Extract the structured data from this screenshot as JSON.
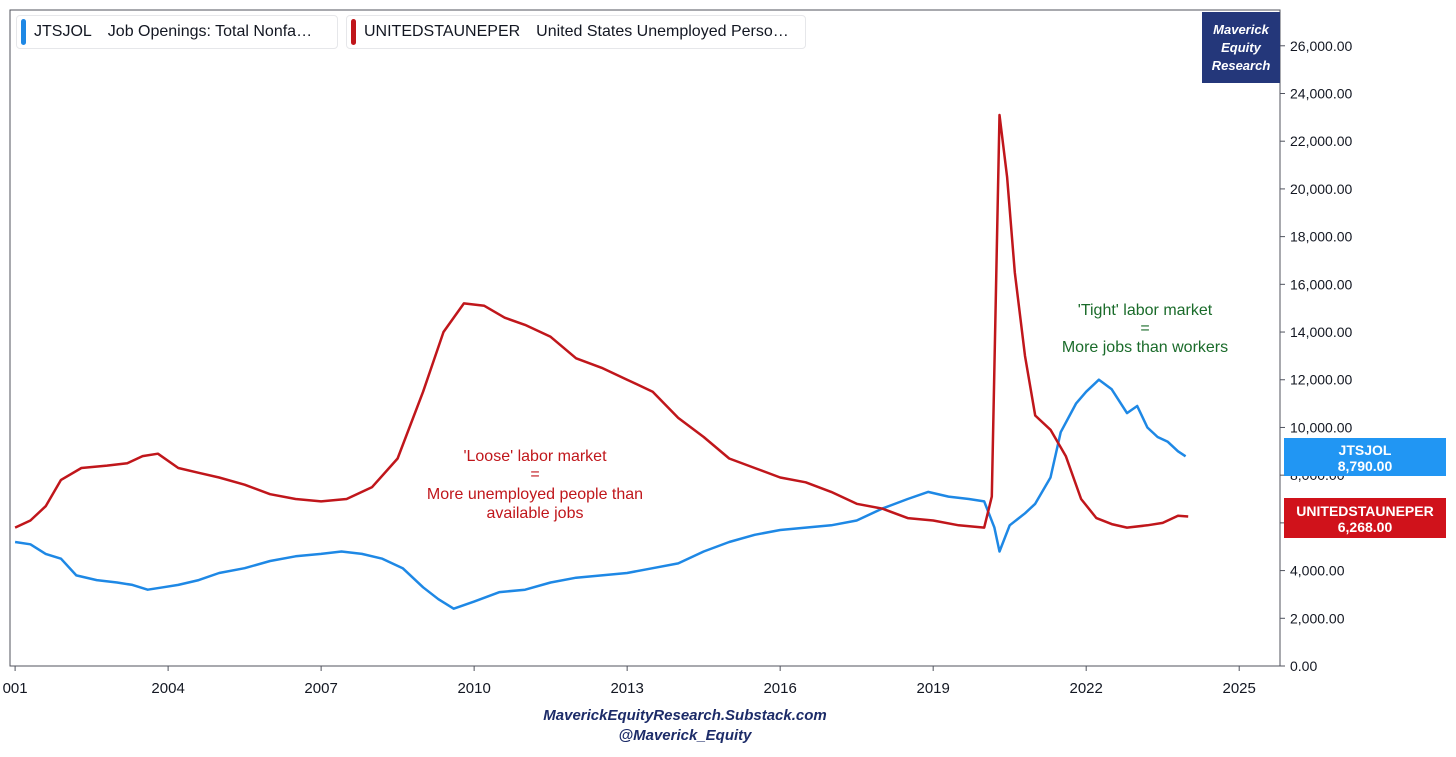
{
  "legend": [
    {
      "symbol": "JTSJOL",
      "description": "Job Openings: Total Nonfa…",
      "color": "#1e88e5"
    },
    {
      "symbol": "UNITEDSTAUNEPER",
      "description": "United States Unemployed Perso…",
      "color": "#c0161b"
    }
  ],
  "brand": {
    "line1": "Maverick",
    "line2": "Equity",
    "line3": "Research",
    "color": "#24377a"
  },
  "footer": {
    "site": "MaverickEquityResearch.Substack.com",
    "handle": "@Maverick_Equity"
  },
  "annotations": {
    "loose": {
      "line1": "'Loose' labor market",
      "line2": "=",
      "line3": "More unemployed people than",
      "line4": "available jobs",
      "color": "#c0161b"
    },
    "tight": {
      "line1": "'Tight' labor market",
      "line2": "=",
      "line3": "More jobs than workers",
      "color": "#1a6b2a"
    }
  },
  "price_tags": [
    {
      "symbol": "JTSJOL",
      "value": "8,790.00",
      "color": "#2196f3"
    },
    {
      "symbol": "UNITEDSTAUNEPER",
      "value": "6,268.00",
      "color": "#d0121b"
    }
  ],
  "chart_data": {
    "type": "line",
    "x_ticks": [
      "001",
      "2004",
      "2007",
      "2010",
      "2013",
      "2016",
      "2019",
      "2022",
      "2025"
    ],
    "x_tick_years": [
      2001,
      2004,
      2007,
      2010,
      2013,
      2016,
      2019,
      2022,
      2025
    ],
    "xlim": [
      2000.9,
      2025.8
    ],
    "ylim": [
      0,
      27500
    ],
    "y_ticks": [
      "0.00",
      "2,000.00",
      "4,000.00",
      "6,000.00",
      "8,000.00",
      "10,000.00",
      "12,000.00",
      "14,000.00",
      "16,000.00",
      "18,000.00",
      "20,000.00",
      "22,000.00",
      "24,000.00",
      "26,000.00"
    ],
    "y_tick_values": [
      0,
      2000,
      4000,
      6000,
      8000,
      10000,
      12000,
      14000,
      16000,
      18000,
      20000,
      22000,
      24000,
      26000
    ],
    "y_axis_position": "right",
    "series": [
      {
        "name": "JTSJOL",
        "color": "#1e88e5",
        "points": [
          [
            2001.0,
            5200
          ],
          [
            2001.3,
            5100
          ],
          [
            2001.6,
            4700
          ],
          [
            2001.9,
            4500
          ],
          [
            2002.2,
            3800
          ],
          [
            2002.6,
            3600
          ],
          [
            2003.0,
            3500
          ],
          [
            2003.3,
            3400
          ],
          [
            2003.6,
            3200
          ],
          [
            2003.9,
            3300
          ],
          [
            2004.2,
            3400
          ],
          [
            2004.6,
            3600
          ],
          [
            2005.0,
            3900
          ],
          [
            2005.5,
            4100
          ],
          [
            2006.0,
            4400
          ],
          [
            2006.5,
            4600
          ],
          [
            2007.0,
            4700
          ],
          [
            2007.4,
            4800
          ],
          [
            2007.8,
            4700
          ],
          [
            2008.2,
            4500
          ],
          [
            2008.6,
            4100
          ],
          [
            2009.0,
            3300
          ],
          [
            2009.3,
            2800
          ],
          [
            2009.6,
            2400
          ],
          [
            2010.0,
            2700
          ],
          [
            2010.5,
            3100
          ],
          [
            2011.0,
            3200
          ],
          [
            2011.5,
            3500
          ],
          [
            2012.0,
            3700
          ],
          [
            2012.5,
            3800
          ],
          [
            2013.0,
            3900
          ],
          [
            2013.5,
            4100
          ],
          [
            2014.0,
            4300
          ],
          [
            2014.5,
            4800
          ],
          [
            2015.0,
            5200
          ],
          [
            2015.5,
            5500
          ],
          [
            2016.0,
            5700
          ],
          [
            2016.5,
            5800
          ],
          [
            2017.0,
            5900
          ],
          [
            2017.5,
            6100
          ],
          [
            2018.0,
            6600
          ],
          [
            2018.5,
            7000
          ],
          [
            2018.9,
            7300
          ],
          [
            2019.3,
            7100
          ],
          [
            2019.7,
            7000
          ],
          [
            2020.0,
            6900
          ],
          [
            2020.2,
            5800
          ],
          [
            2020.3,
            4800
          ],
          [
            2020.5,
            5900
          ],
          [
            2020.8,
            6400
          ],
          [
            2021.0,
            6800
          ],
          [
            2021.3,
            7900
          ],
          [
            2021.5,
            9800
          ],
          [
            2021.8,
            11000
          ],
          [
            2022.0,
            11500
          ],
          [
            2022.25,
            12000
          ],
          [
            2022.5,
            11600
          ],
          [
            2022.8,
            10600
          ],
          [
            2023.0,
            10900
          ],
          [
            2023.2,
            10000
          ],
          [
            2023.4,
            9600
          ],
          [
            2023.6,
            9400
          ],
          [
            2023.8,
            9000
          ],
          [
            2023.95,
            8790
          ]
        ]
      },
      {
        "name": "UNITEDSTAUNEPER",
        "color": "#c0161b",
        "points": [
          [
            2001.0,
            5800
          ],
          [
            2001.3,
            6100
          ],
          [
            2001.6,
            6700
          ],
          [
            2001.9,
            7800
          ],
          [
            2002.3,
            8300
          ],
          [
            2002.8,
            8400
          ],
          [
            2003.2,
            8500
          ],
          [
            2003.5,
            8800
          ],
          [
            2003.8,
            8900
          ],
          [
            2004.2,
            8300
          ],
          [
            2004.6,
            8100
          ],
          [
            2005.0,
            7900
          ],
          [
            2005.5,
            7600
          ],
          [
            2006.0,
            7200
          ],
          [
            2006.5,
            7000
          ],
          [
            2007.0,
            6900
          ],
          [
            2007.5,
            7000
          ],
          [
            2008.0,
            7500
          ],
          [
            2008.5,
            8700
          ],
          [
            2009.0,
            11500
          ],
          [
            2009.4,
            14000
          ],
          [
            2009.8,
            15200
          ],
          [
            2010.2,
            15100
          ],
          [
            2010.6,
            14600
          ],
          [
            2011.0,
            14300
          ],
          [
            2011.5,
            13800
          ],
          [
            2012.0,
            12900
          ],
          [
            2012.5,
            12500
          ],
          [
            2013.0,
            12000
          ],
          [
            2013.5,
            11500
          ],
          [
            2014.0,
            10400
          ],
          [
            2014.5,
            9600
          ],
          [
            2015.0,
            8700
          ],
          [
            2015.5,
            8300
          ],
          [
            2016.0,
            7900
          ],
          [
            2016.5,
            7700
          ],
          [
            2017.0,
            7300
          ],
          [
            2017.5,
            6800
          ],
          [
            2018.0,
            6600
          ],
          [
            2018.5,
            6200
          ],
          [
            2019.0,
            6100
          ],
          [
            2019.5,
            5900
          ],
          [
            2020.0,
            5800
          ],
          [
            2020.15,
            7100
          ],
          [
            2020.3,
            23100
          ],
          [
            2020.45,
            20500
          ],
          [
            2020.6,
            16500
          ],
          [
            2020.8,
            13000
          ],
          [
            2021.0,
            10500
          ],
          [
            2021.3,
            9900
          ],
          [
            2021.6,
            8800
          ],
          [
            2021.9,
            7000
          ],
          [
            2022.2,
            6200
          ],
          [
            2022.5,
            5950
          ],
          [
            2022.8,
            5800
          ],
          [
            2023.2,
            5900
          ],
          [
            2023.5,
            6000
          ],
          [
            2023.8,
            6300
          ],
          [
            2024.0,
            6268
          ]
        ]
      }
    ]
  }
}
